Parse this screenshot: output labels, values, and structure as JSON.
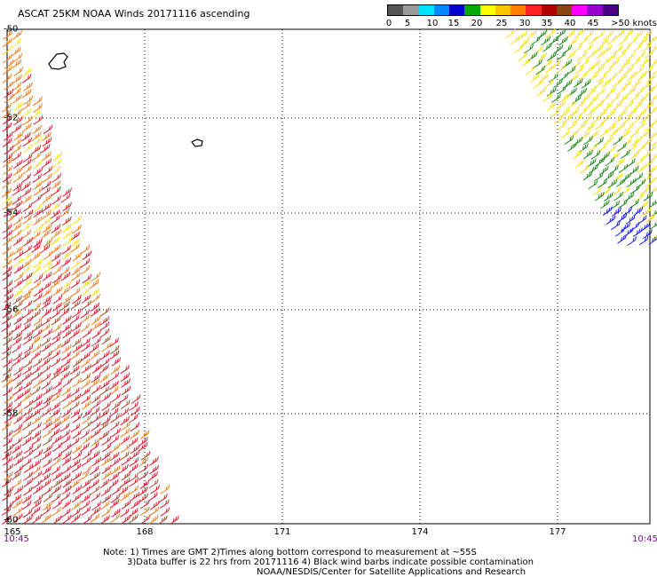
{
  "header": {
    "title": "ASCAT 25KM NOAA Winds 20171116 ascending"
  },
  "legend": {
    "labels": [
      "0",
      "5",
      "10",
      "15",
      "20",
      "25",
      "30",
      "35",
      "40",
      "45",
      ">50 knots"
    ],
    "colors": [
      "#555555",
      "#999999",
      "#00e5ff",
      "#0088ff",
      "#0000cc",
      "#00aa00",
      "#ffff00",
      "#ffc400",
      "#ff7f00",
      "#ff2020",
      "#b00000",
      "#8b4513",
      "#ff00ff",
      "#9900cc",
      "#4b0082"
    ]
  },
  "axes": {
    "lat_labels": [
      "-50",
      "-52",
      "-54",
      "-56",
      "-58",
      "-60"
    ],
    "lon_labels": [
      "165",
      "168",
      "171",
      "174",
      "177"
    ],
    "time_left": "10:45",
    "time_right": "10:45"
  },
  "wind_colors": {
    "red": "#dd1c2c",
    "orange": "#f07c1a",
    "yellow": "#f5e020",
    "green": "#1a8a1a",
    "blue": "#1a1aff",
    "brown": "#a0522d"
  },
  "notes": {
    "line1": "Note: 1) Times are GMT 2)Times along bottom correspond to measurement at ~55S",
    "line2": "3)Data buffer is 22 hrs from 20171116 4) Black wind barbs indicate possible contamination",
    "line3": "NOAA/NESDIS/Center for Satellite Applications and Research"
  }
}
